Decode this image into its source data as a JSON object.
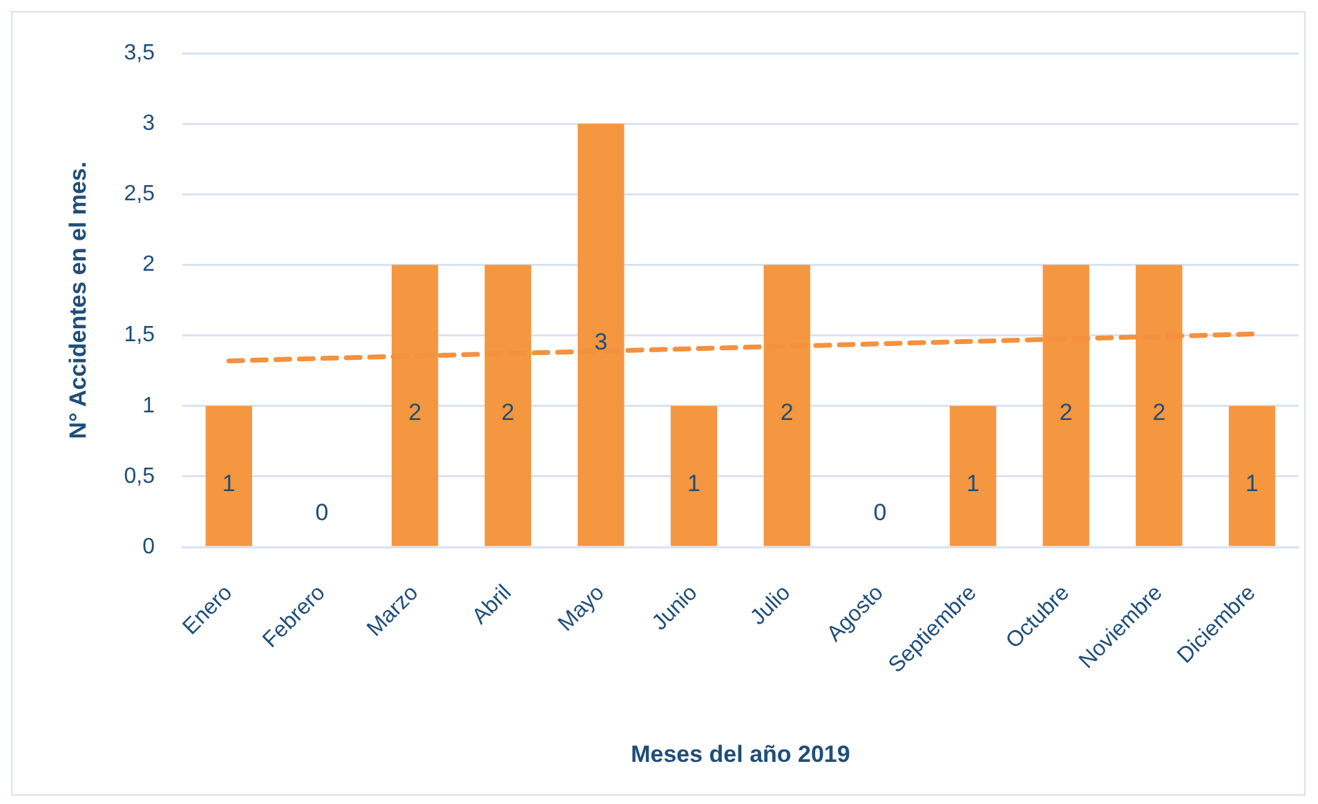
{
  "chart_data": {
    "type": "bar",
    "xlabel": "Meses del año 2019",
    "ylabel": "N° Accidentes en el mes.",
    "categories": [
      "Enero",
      "Febrero",
      "Marzo",
      "Abril",
      "Mayo",
      "Junio",
      "Julio",
      "Agosto",
      "Septiembre",
      "Octubre",
      "Noviembre",
      "Diciembre"
    ],
    "series": [
      {
        "color": "#f59640",
        "values": [
          1,
          0,
          2,
          2,
          3,
          1,
          2,
          0,
          1,
          2,
          2,
          1
        ],
        "value_labels": [
          "1",
          "0",
          "2",
          "2",
          "3",
          "1",
          "2",
          "0",
          "1",
          "2",
          "2",
          "1"
        ]
      },
      {
        "type": "line",
        "color": "#f4913e",
        "x": [
          "Enero",
          "Diciembre"
        ],
        "values": [
          1.32,
          1.51
        ],
        "line_style": "dashed",
        "marker": "none"
      }
    ],
    "ylim": [
      0,
      3.5
    ],
    "yticks": [
      0,
      {
        "value": 0.5,
        "label": "0,5"
      },
      1,
      {
        "value": 1.5,
        "label": "1,5"
      },
      2,
      {
        "value": 2.5,
        "label": "2,5"
      },
      3,
      {
        "value": 3.5,
        "label": "3,5"
      }
    ],
    "grid": "y",
    "legend": false
  }
}
